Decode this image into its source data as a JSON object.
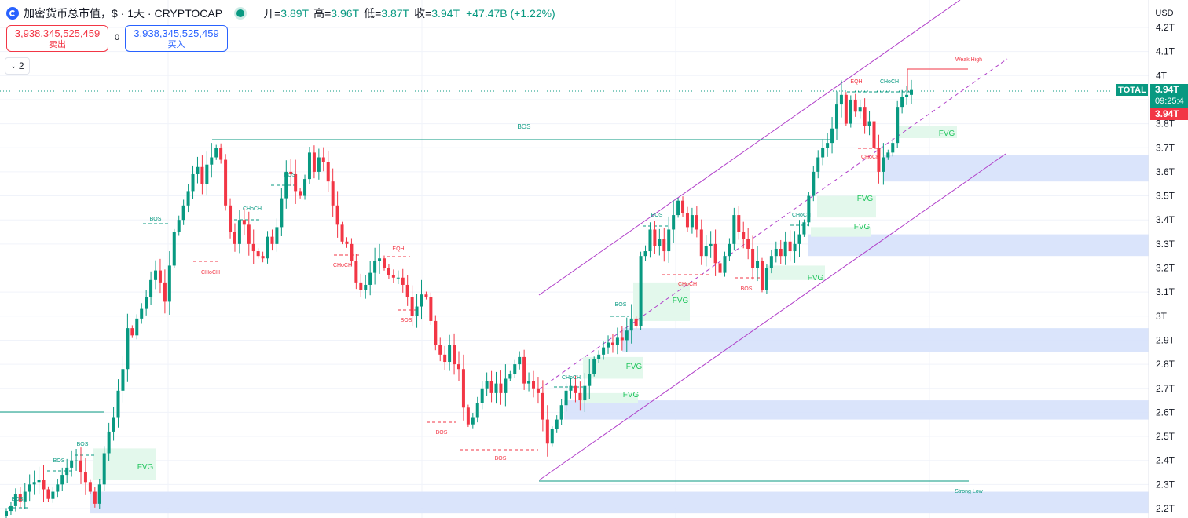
{
  "legend": {
    "symbol": "加密货币总市值，$ · 1天 · CRYPTOCAP",
    "open_label": "开=",
    "open": "3.89T",
    "high_label": "高=",
    "high": "3.96T",
    "low_label": "低=",
    "low": "3.87T",
    "close_label": "收=",
    "close": "3.94T",
    "change": "+47.47B (+1.22%)"
  },
  "order": {
    "sell_price": "3,938,345,525,459",
    "sell_label": "卖出",
    "spread": "0",
    "buy_price": "3,938,345,525,459",
    "buy_label": "买入"
  },
  "collapse": {
    "count": "2",
    "icon": "chevron-down-icon"
  },
  "axis": {
    "currency": "USD"
  },
  "price_tags": {
    "symbol_tag": "TOTAL",
    "last_price": "3.94T",
    "countdown": "09:25:4",
    "red_price": "3.94T"
  },
  "colors": {
    "up": "#089981",
    "down": "#f23645",
    "channel": "#b13fc9",
    "zone": "#d6e1fb",
    "fvg": "#e3f8ec"
  },
  "chart_data": {
    "type": "candlestick",
    "y_unit": "T USD",
    "ylim": [
      2.17,
      4.25
    ],
    "y_ticks": [
      "4.2T",
      "4.1T",
      "4T",
      "3.9T",
      "3.8T",
      "3.7T",
      "3.6T",
      "3.5T",
      "3.4T",
      "3.3T",
      "3.2T",
      "3.1T",
      "3T",
      "2.9T",
      "2.8T",
      "2.7T",
      "2.6T",
      "2.5T",
      "2.4T",
      "2.3T",
      "2.2T"
    ],
    "close_series": [
      2.19,
      2.21,
      2.26,
      2.23,
      2.27,
      2.3,
      2.31,
      2.32,
      2.28,
      2.24,
      2.27,
      2.3,
      2.34,
      2.37,
      2.4,
      2.4,
      2.35,
      2.31,
      2.27,
      2.22,
      2.3,
      2.43,
      2.52,
      2.58,
      2.69,
      2.78,
      2.95,
      2.92,
      2.99,
      3.03,
      3.08,
      3.15,
      3.19,
      3.14,
      3.06,
      3.21,
      3.35,
      3.4,
      3.46,
      3.52,
      3.59,
      3.62,
      3.55,
      3.63,
      3.66,
      3.7,
      3.65,
      3.46,
      3.35,
      3.3,
      3.4,
      3.38,
      3.3,
      3.27,
      3.25,
      3.24,
      3.33,
      3.3,
      3.37,
      3.49,
      3.6,
      3.59,
      3.52,
      3.5,
      3.57,
      3.68,
      3.6,
      3.66,
      3.64,
      3.56,
      3.46,
      3.38,
      3.31,
      3.3,
      3.23,
      3.14,
      3.11,
      3.13,
      3.18,
      3.23,
      3.24,
      3.2,
      3.17,
      3.16,
      3.16,
      3.13,
      3.08,
      3.0,
      3.04,
      3.09,
      3.08,
      2.98,
      2.88,
      2.84,
      2.81,
      2.88,
      2.8,
      2.78,
      2.62,
      2.55,
      2.58,
      2.64,
      2.7,
      2.73,
      2.68,
      2.72,
      2.68,
      2.74,
      2.76,
      2.8,
      2.83,
      2.72,
      2.73,
      2.7,
      2.68,
      2.57,
      2.47,
      2.53,
      2.57,
      2.63,
      2.69,
      2.71,
      2.68,
      2.65,
      2.71,
      2.76,
      2.82,
      2.84,
      2.87,
      2.89,
      2.88,
      2.91,
      2.9,
      2.94,
      2.99,
      2.96,
      3.25,
      3.27,
      3.36,
      3.29,
      3.32,
      3.27,
      3.36,
      3.42,
      3.48,
      3.43,
      3.37,
      3.42,
      3.36,
      3.25,
      3.29,
      3.3,
      3.22,
      3.18,
      3.25,
      3.3,
      3.42,
      3.35,
      3.32,
      3.28,
      3.2,
      3.23,
      3.11,
      3.2,
      3.25,
      3.28,
      3.25,
      3.31,
      3.27,
      3.3,
      3.34,
      3.39,
      3.5,
      3.6,
      3.66,
      3.7,
      3.72,
      3.78,
      3.88,
      3.92,
      3.8,
      3.9,
      3.85,
      3.87,
      3.79,
      3.81,
      3.7,
      3.6,
      3.66,
      3.68,
      3.72,
      3.87,
      3.91,
      3.92,
      3.94
    ],
    "labels": {
      "bos": "BOS",
      "choch": "CHoCH",
      "eqh": "EQH",
      "fvg": "FVG",
      "weak_high": "Weak High",
      "strong_low": "Strong Low"
    }
  }
}
